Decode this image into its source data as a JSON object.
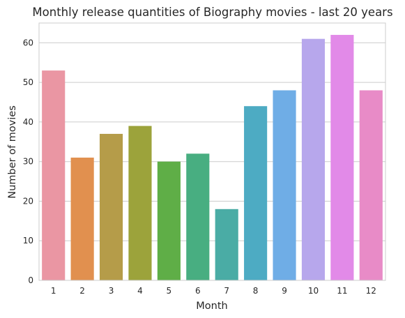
{
  "chart_data": {
    "type": "bar",
    "title": "Monthly release quantities of Biography movies - last 20 years",
    "xlabel": "Month",
    "ylabel": "Number of movies",
    "categories": [
      "1",
      "2",
      "3",
      "4",
      "5",
      "6",
      "7",
      "8",
      "9",
      "10",
      "11",
      "12"
    ],
    "values": [
      53,
      31,
      37,
      39,
      30,
      32,
      18,
      44,
      48,
      61,
      62,
      48
    ],
    "yticks": [
      "0",
      "10",
      "20",
      "30",
      "40",
      "50",
      "60"
    ],
    "ylim": [
      0,
      65
    ],
    "grid": "horizontal",
    "colors": [
      "#ea96a3",
      "#e1904f",
      "#b59c49",
      "#9ca33b",
      "#5fae47",
      "#48ae81",
      "#4aaca5",
      "#4dabc3",
      "#6fade6",
      "#b7a7ec",
      "#e28ae8",
      "#e88bc7"
    ]
  }
}
